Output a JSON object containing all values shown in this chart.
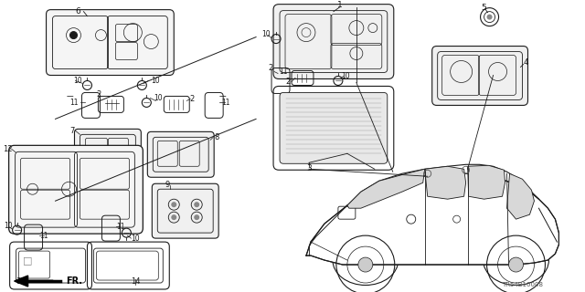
{
  "diagram_code": "TR54B10008",
  "bg_color": "#ffffff",
  "line_color": "#1a1a1a",
  "fig_width": 6.4,
  "fig_height": 3.2,
  "dpi": 100
}
